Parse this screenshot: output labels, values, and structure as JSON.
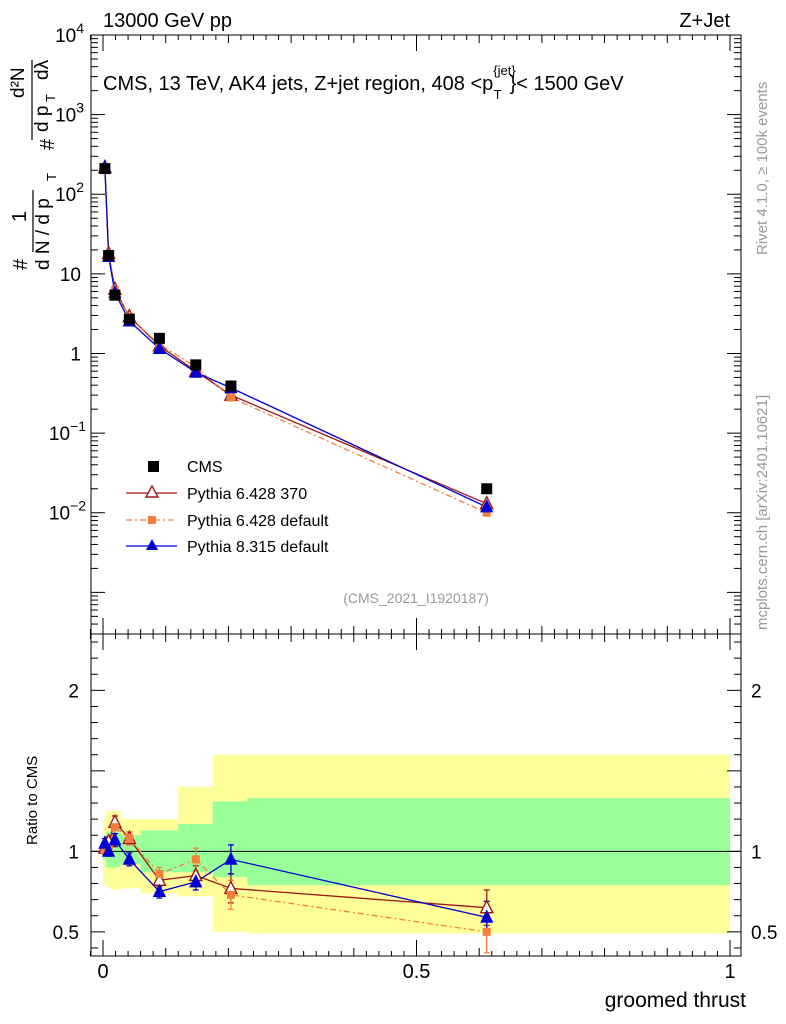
{
  "header": {
    "left": "13000 GeV pp",
    "right": "Z+Jet",
    "description_prefix": "CMS, 13 TeV, AK4 jets, Z+jet region, 408 <p",
    "description_sup": "{jet}",
    "description_sub": "T",
    "description_suffix": "}< 1500 GeV",
    "side_rivet": "Rivet 4.1.0, ≥ 100k events",
    "side_mcplots": "mcplots.cern.ch [arXiv:2401.10621]",
    "analysis_id": "(CMS_2021_I1920187)"
  },
  "chart_data": [
    {
      "type": "line",
      "panel": "main",
      "yscale": "log",
      "ylabel": "1/dN/dpT # d²N/dpT dλ",
      "ylabel_parts": {
        "left_frac_num": "#",
        "left_frac_one": "1",
        "left_frac_den": "d N / d p",
        "left_frac_den_sub": "T",
        "right_frac_num": "d²N",
        "right_frac_num_hash": "#",
        "right_frac_den": "d p",
        "right_frac_den_sub": "T",
        "right_frac_den_tail": "dλ"
      },
      "xlim": [
        -0.02,
        1.0
      ],
      "ylim": [
        0.0003,
        10000
      ],
      "y_ticks": [
        {
          "value": 0.01,
          "base": "10",
          "exp": "−2"
        },
        {
          "value": 0.1,
          "base": "10",
          "exp": "−1"
        },
        {
          "value": 1,
          "base": "1",
          "exp": ""
        },
        {
          "value": 10,
          "base": "10",
          "exp": ""
        },
        {
          "value": 100,
          "base": "10",
          "exp": "2"
        },
        {
          "value": 1000,
          "base": "10",
          "exp": "3"
        },
        {
          "value": 10000,
          "base": "10",
          "exp": "4"
        }
      ],
      "series": [
        {
          "name": "CMS",
          "marker": "square",
          "color": "#000000",
          "x": [
            0.003,
            0.009,
            0.019,
            0.042,
            0.09,
            0.148,
            0.204,
            0.612
          ],
          "y": [
            210,
            17,
            5.4,
            2.7,
            1.55,
            0.72,
            0.39,
            0.02
          ]
        },
        {
          "name": "Pythia 6.428 370",
          "marker": "open-triangle",
          "color": "#a01515",
          "x": [
            0.003,
            0.009,
            0.019,
            0.042,
            0.09,
            0.148,
            0.204,
            0.612
          ],
          "y": [
            215,
            18,
            6.4,
            2.9,
            1.25,
            0.6,
            0.3,
            0.013
          ]
        },
        {
          "name": "Pythia 6.428 default",
          "marker": "filled-square",
          "color": "#f5803c",
          "x": [
            0.003,
            0.009,
            0.019,
            0.042,
            0.09,
            0.148,
            0.204,
            0.612
          ],
          "y": [
            205,
            17.2,
            6.2,
            2.9,
            1.3,
            0.68,
            0.28,
            0.01
          ]
        },
        {
          "name": "Pythia 8.315 default",
          "marker": "filled-triangle",
          "color": "#0000d0",
          "x": [
            0.003,
            0.009,
            0.019,
            0.042,
            0.09,
            0.148,
            0.204,
            0.612
          ],
          "y": [
            220,
            16.5,
            5.8,
            2.55,
            1.15,
            0.58,
            0.37,
            0.0118
          ]
        }
      ]
    },
    {
      "type": "line",
      "panel": "ratio",
      "xlabel": "groomed thrust",
      "ylabel": "Ratio to CMS",
      "xlim": [
        -0.02,
        1.0
      ],
      "ylim": [
        0.35,
        2.35
      ],
      "x_ticks": [
        {
          "value": 0,
          "label": "0"
        },
        {
          "value": 0.5,
          "label": "0.5"
        },
        {
          "value": 1,
          "label": "1"
        }
      ],
      "y_ticks": [
        {
          "value": 0.5,
          "label": "0.5"
        },
        {
          "value": 1,
          "label": "1"
        },
        {
          "value": 2,
          "label": "2"
        }
      ],
      "bands": {
        "bins": [
          [
            0.0,
            0.005
          ],
          [
            0.005,
            0.012
          ],
          [
            0.012,
            0.028
          ],
          [
            0.028,
            0.06
          ],
          [
            0.06,
            0.12
          ],
          [
            0.12,
            0.175
          ],
          [
            0.175,
            0.23
          ],
          [
            0.23,
            1.0
          ]
        ],
        "inner": [
          [
            0.95,
            1.05
          ],
          [
            0.9,
            1.12
          ],
          [
            0.9,
            1.14
          ],
          [
            0.92,
            1.1
          ],
          [
            0.87,
            1.13
          ],
          [
            0.87,
            1.17
          ],
          [
            0.84,
            1.31
          ],
          [
            0.79,
            1.33
          ]
        ],
        "outer": [
          [
            0.8,
            1.2
          ],
          [
            0.78,
            1.25
          ],
          [
            0.76,
            1.25
          ],
          [
            0.77,
            1.2
          ],
          [
            0.74,
            1.2
          ],
          [
            0.72,
            1.4
          ],
          [
            0.5,
            1.6
          ],
          [
            0.49,
            1.6
          ]
        ]
      },
      "series": [
        {
          "name": "Pythia 6.428 370",
          "marker": "open-triangle",
          "color": "#a01515",
          "x": [
            0.003,
            0.009,
            0.019,
            0.042,
            0.09,
            0.148,
            0.204,
            0.612
          ],
          "y": [
            1.02,
            1.06,
            1.18,
            1.08,
            0.82,
            0.85,
            0.77,
            0.65
          ],
          "err": [
            0.03,
            0.03,
            0.04,
            0.04,
            0.04,
            0.06,
            0.09,
            0.11
          ]
        },
        {
          "name": "Pythia 6.428 default",
          "marker": "filled-square",
          "color": "#f5803c",
          "x": [
            0.003,
            0.009,
            0.019,
            0.042,
            0.09,
            0.148,
            0.204,
            0.612
          ],
          "y": [
            1.01,
            1.02,
            1.15,
            1.08,
            0.86,
            0.95,
            0.73,
            0.5
          ],
          "err": [
            0.03,
            0.03,
            0.04,
            0.04,
            0.04,
            0.07,
            0.09,
            0.13
          ]
        },
        {
          "name": "Pythia 8.315 default",
          "marker": "filled-triangle",
          "color": "#0000d0",
          "x": [
            0.003,
            0.009,
            0.019,
            0.042,
            0.09,
            0.148,
            0.204,
            0.612
          ],
          "y": [
            1.05,
            1.0,
            1.07,
            0.95,
            0.75,
            0.81,
            0.95,
            0.59
          ],
          "err": [
            0.03,
            0.03,
            0.04,
            0.04,
            0.04,
            0.05,
            0.09,
            0.1
          ]
        }
      ]
    }
  ],
  "colors": {
    "band_outer": "#ffff99",
    "band_inner": "#99ff99"
  }
}
